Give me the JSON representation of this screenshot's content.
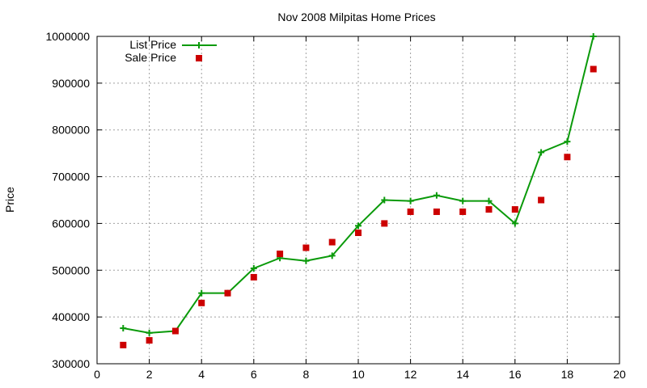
{
  "chart_data": {
    "type": "line",
    "title": "Nov 2008 Milpitas Home Prices",
    "xlabel": "",
    "ylabel": "Price",
    "xlim": [
      0,
      20
    ],
    "ylim": [
      300000,
      1000000
    ],
    "x_ticks": [
      "0",
      "2",
      "4",
      "6",
      "8",
      "10",
      "12",
      "14",
      "16",
      "18",
      "20"
    ],
    "y_ticks": [
      "300000",
      "400000",
      "500000",
      "600000",
      "700000",
      "800000",
      "900000",
      "1000000"
    ],
    "grid": true,
    "legend_position": "top-left",
    "series": [
      {
        "name": "List Price",
        "style": "line-with-plus-markers",
        "color": "#0a9a0a",
        "x": [
          1,
          2,
          3,
          4,
          5,
          6,
          7,
          8,
          9,
          10,
          11,
          12,
          13,
          14,
          15,
          16,
          17,
          18,
          19
        ],
        "values": [
          376000,
          366000,
          370000,
          451000,
          451000,
          504000,
          526000,
          520000,
          531000,
          595000,
          650000,
          648000,
          660000,
          648000,
          648000,
          600000,
          752000,
          775000,
          1000000
        ]
      },
      {
        "name": "Sale Price",
        "style": "square-markers",
        "color": "#cc0000",
        "x": [
          1,
          2,
          3,
          4,
          5,
          6,
          7,
          8,
          9,
          10,
          11,
          12,
          13,
          14,
          15,
          16,
          17,
          18,
          19
        ],
        "values": [
          340000,
          350000,
          370000,
          430000,
          451000,
          485000,
          535000,
          548000,
          560000,
          580000,
          600000,
          625000,
          625000,
          625000,
          630000,
          630000,
          650000,
          742000,
          930000
        ]
      }
    ]
  }
}
